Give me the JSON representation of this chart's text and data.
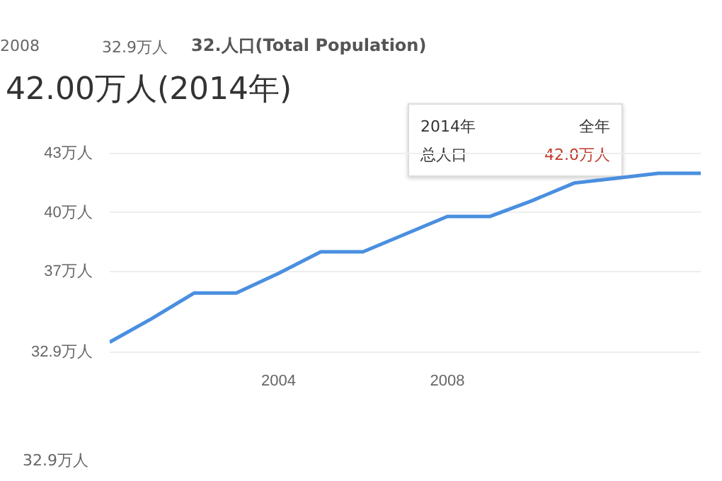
{
  "chart_data": {
    "type": "line",
    "title": "42.00万人(2014年)",
    "subtitle": "32.人口(Total Population)",
    "x": [
      2000,
      2001,
      2002,
      2003,
      2004,
      2005,
      2006,
      2007,
      2008,
      2009,
      2010,
      2011,
      2012,
      2013,
      2014
    ],
    "series": [
      {
        "color": "#4a8fe0",
        "values": [
          33.4,
          34.6,
          35.9,
          35.9,
          36.9,
          38.0,
          38.0,
          38.9,
          39.8,
          39.8,
          40.6,
          41.5,
          null,
          42.0,
          42.0
        ]
      }
    ],
    "xlim": [
      2000,
      2014
    ],
    "xticks": [
      2004,
      2008
    ],
    "ylim": [
      32.9,
      43
    ],
    "yticks": [
      {
        "value": 32.9,
        "label": "32.9万人"
      },
      {
        "value": 37,
        "label": "37万人"
      },
      {
        "value": 40,
        "label": "40万人"
      },
      {
        "value": 43,
        "label": "43万人"
      }
    ],
    "grid": "y",
    "legend": false,
    "marker": "none",
    "line_style": "solid",
    "annotations": [
      "2008",
      "32.9万人",
      "2014年",
      "全年",
      "总人口",
      "42.0万人",
      "32.9万人"
    ]
  }
}
